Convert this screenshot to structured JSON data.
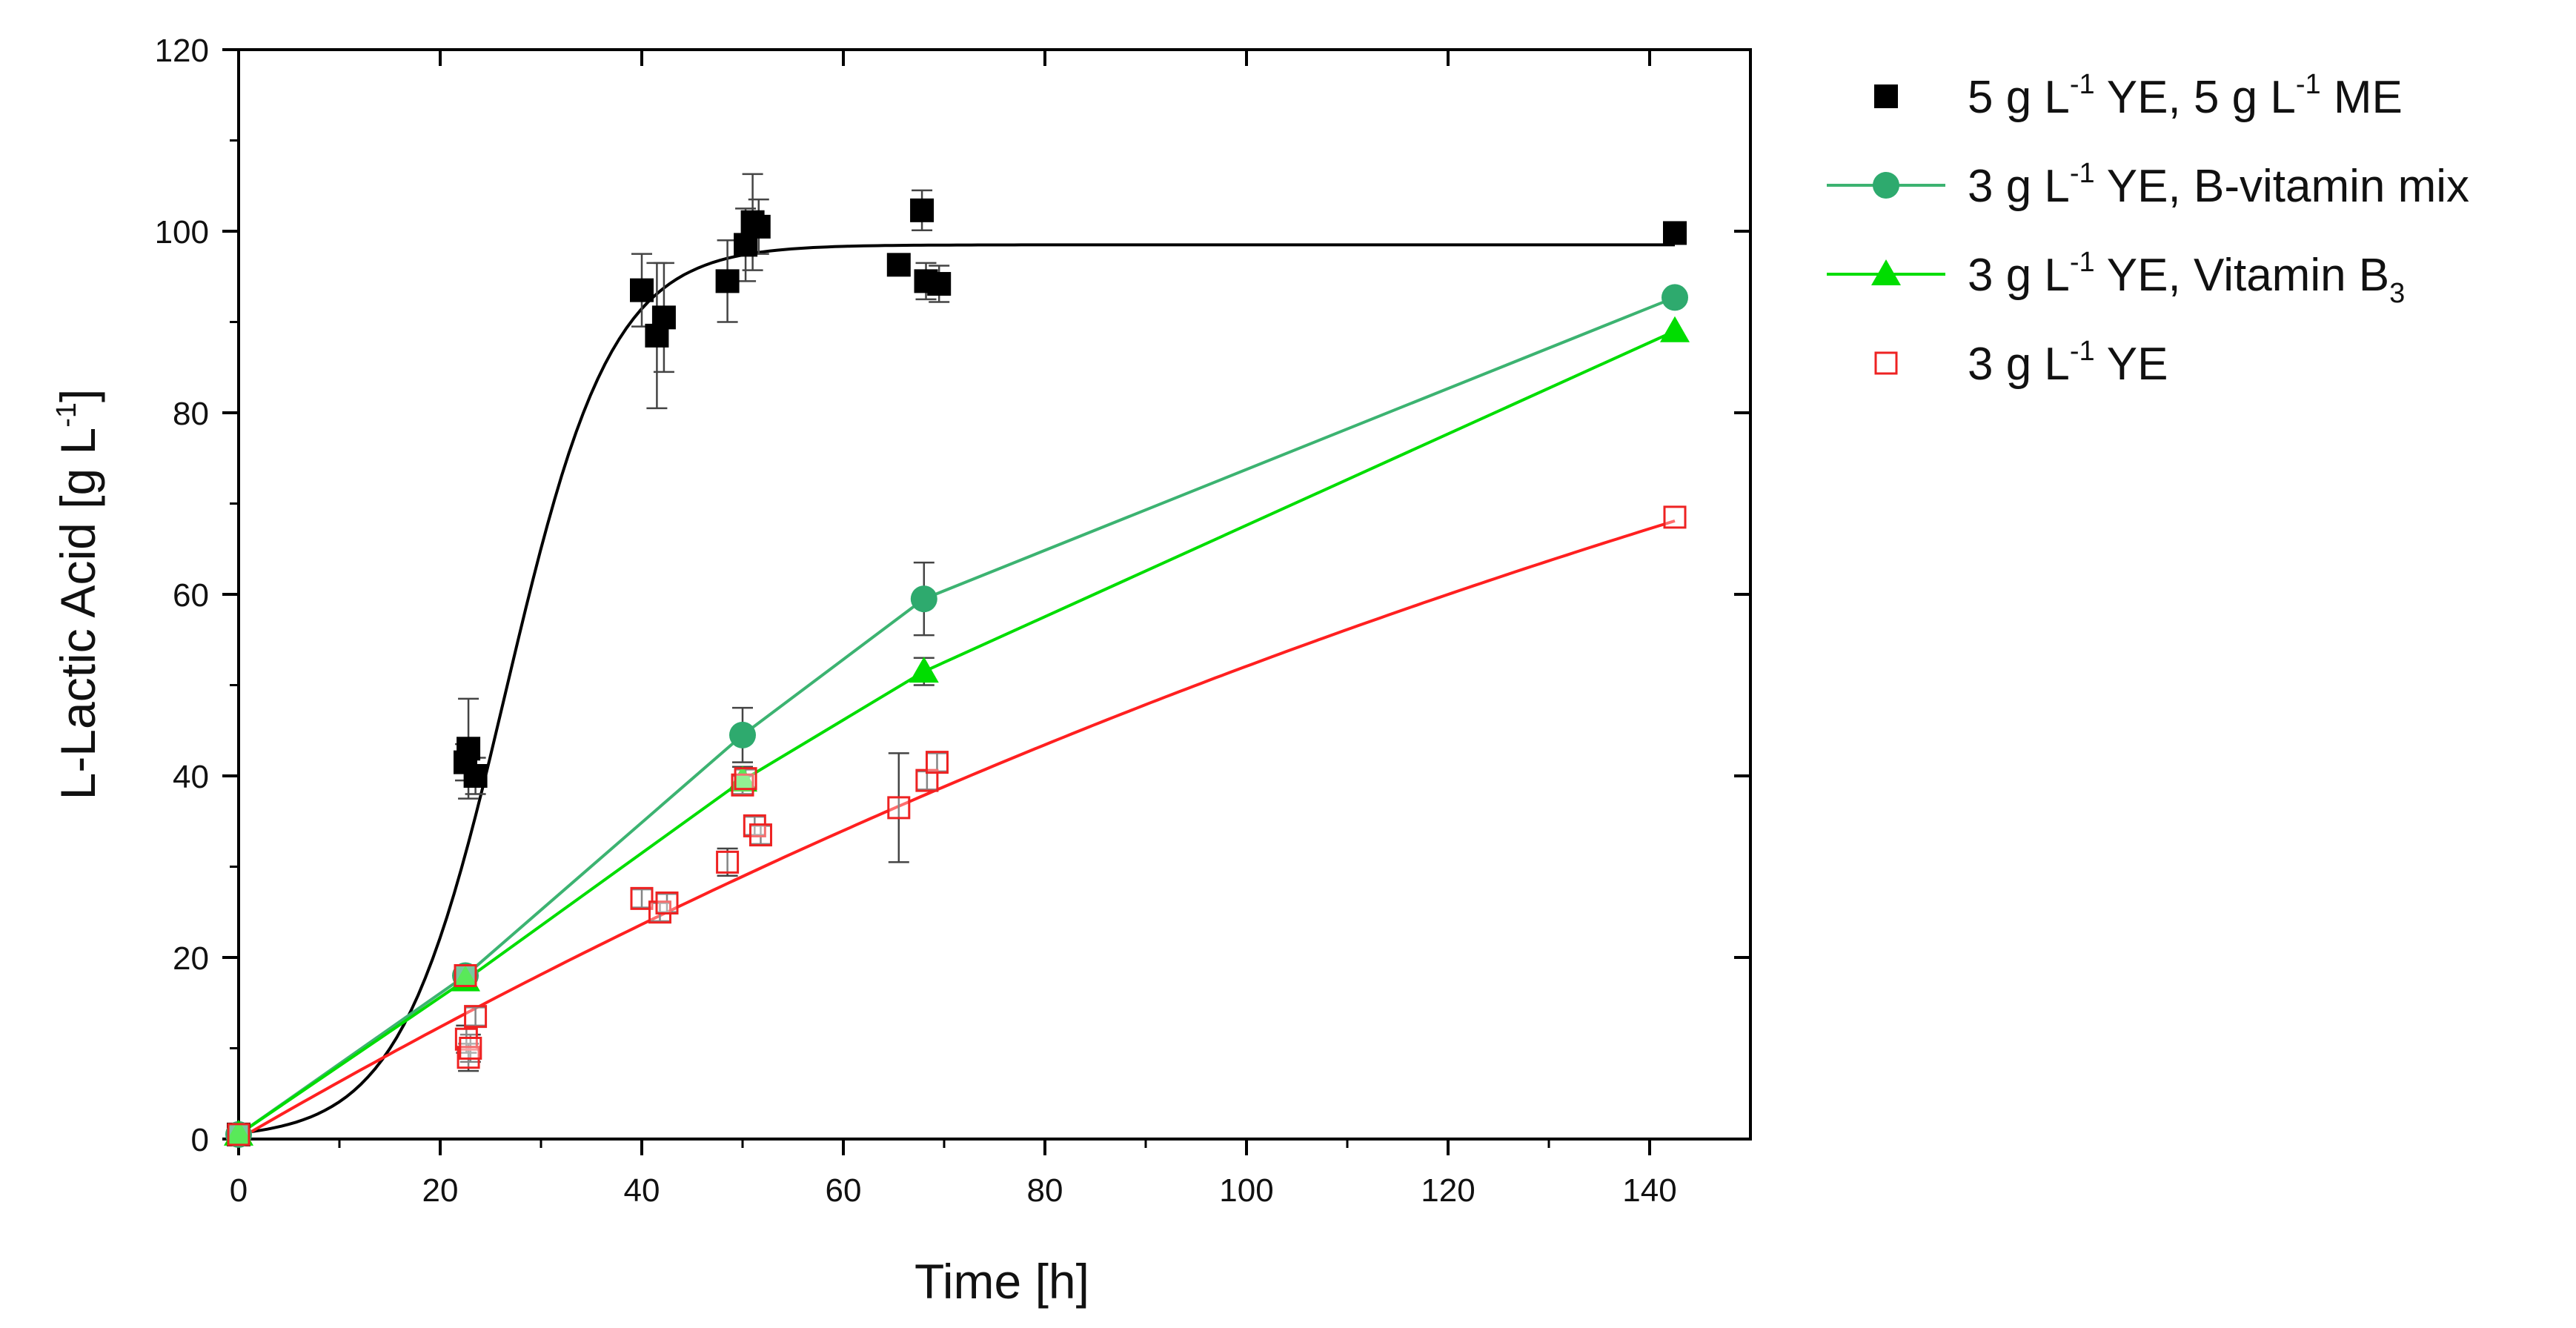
{
  "chart_data": {
    "type": "scatter",
    "title": "",
    "xlabel": "Time   [h]",
    "ylabel": {
      "main": "L-Lactic Acid   [g L",
      "sup": "-1",
      "end": "]"
    },
    "xlim": [
      0,
      150
    ],
    "ylim": [
      0,
      120
    ],
    "xticks": [
      0,
      20,
      40,
      60,
      80,
      100,
      120,
      140
    ],
    "yticks": [
      0,
      20,
      40,
      60,
      80,
      100,
      120
    ],
    "grid": false,
    "legend_position": "outside-right",
    "series": [
      {
        "id": "s1",
        "name": "5 g L-1 YE, 5 g L-1 ME",
        "legend_parts": [
          {
            "t": "5 g L",
            "sup": false
          },
          {
            "t": "-1",
            "sup": true
          },
          {
            "t": " YE, 5 g L",
            "sup": false
          },
          {
            "t": "-1",
            "sup": true
          },
          {
            "t": " ME",
            "sup": false
          }
        ],
        "marker": "square-filled",
        "color": "#000000",
        "legend_line": false,
        "points": [
          {
            "x": 0,
            "y": 0.5,
            "err": 0.5
          },
          {
            "x": 22.5,
            "y": 41.5,
            "err": 2
          },
          {
            "x": 22.8,
            "y": 43,
            "err": 5.5
          },
          {
            "x": 23.5,
            "y": 40,
            "err": 2
          },
          {
            "x": 40,
            "y": 93.5,
            "err": 4
          },
          {
            "x": 41.5,
            "y": 88.5,
            "err": 8
          },
          {
            "x": 42.2,
            "y": 90.5,
            "err": 6
          },
          {
            "x": 48.5,
            "y": 94.5,
            "err": 4.5
          },
          {
            "x": 50.3,
            "y": 98.5,
            "err": 4
          },
          {
            "x": 51,
            "y": 101,
            "err": 5.3
          },
          {
            "x": 51.6,
            "y": 100.5,
            "err": 3
          },
          {
            "x": 65.5,
            "y": 96.3,
            "err": 1
          },
          {
            "x": 67.8,
            "y": 102.3,
            "err": 2.2
          },
          {
            "x": 68.2,
            "y": 94.5,
            "err": 2
          },
          {
            "x": 69.5,
            "y": 94.2,
            "err": 2
          }
        ],
        "extra_points": [
          {
            "x": 142.5,
            "y": 99.8,
            "err": 0
          }
        ],
        "fit_curve": {
          "model": "sigmoid",
          "params": {
            "A": 98.5,
            "x0": 26.5,
            "k": 0.19
          },
          "x_from": 0,
          "x_to": 142.5
        },
        "line_color": "#000000"
      },
      {
        "id": "s2",
        "name": "3 g L-1 YE, B-vitamin mix",
        "legend_parts": [
          {
            "t": "3 g L",
            "sup": false
          },
          {
            "t": "-1",
            "sup": true
          },
          {
            "t": " YE, B-vitamin mix",
            "sup": false
          }
        ],
        "marker": "circle-filled",
        "color": "#2eaa6e",
        "legend_line": true,
        "points": [
          {
            "x": 0,
            "y": 0.5,
            "err": 0
          },
          {
            "x": 22.5,
            "y": 18,
            "err": 1
          },
          {
            "x": 50,
            "y": 44.5,
            "err": 3
          },
          {
            "x": 68,
            "y": 59.5,
            "err": 4
          },
          {
            "x": 142.5,
            "y": 92.7,
            "err": 0
          }
        ],
        "connect": true,
        "line_color": "#3cb371"
      },
      {
        "id": "s3",
        "name": "3 g L-1 YE, Vitamin B3",
        "legend_parts": [
          {
            "t": "3 g L",
            "sup": false
          },
          {
            "t": "-1",
            "sup": true
          },
          {
            "t": " YE, Vitamin B",
            "sup": false
          },
          {
            "t": "3",
            "sub": true
          }
        ],
        "marker": "triangle-filled",
        "color": "#00dd00",
        "legend_line": true,
        "points": [
          {
            "x": 0,
            "y": 0.5,
            "err": 0
          },
          {
            "x": 22.5,
            "y": 17.5,
            "err": 1
          },
          {
            "x": 50,
            "y": 39.5,
            "err": 1.5
          },
          {
            "x": 68,
            "y": 51.5,
            "err": 1.5
          },
          {
            "x": 142.5,
            "y": 89,
            "err": 0
          }
        ],
        "connect": true,
        "line_color": "#00dd00"
      },
      {
        "id": "s4",
        "name": "3 g L-1 YE",
        "legend_parts": [
          {
            "t": "3 g L",
            "sup": false
          },
          {
            "t": "-1",
            "sup": true
          },
          {
            "t": " YE",
            "sup": false
          }
        ],
        "marker": "square-open",
        "color": "#ee2222",
        "legend_line": false,
        "points": [
          {
            "x": 0,
            "y": 0.5,
            "err": 0.5
          },
          {
            "x": 22.5,
            "y": 18,
            "err": 0.8
          },
          {
            "x": 22.6,
            "y": 11,
            "err": 1.5
          },
          {
            "x": 22.8,
            "y": 9,
            "err": 1.5
          },
          {
            "x": 23,
            "y": 10,
            "err": 1.5
          },
          {
            "x": 23.5,
            "y": 13.5,
            "err": 1
          },
          {
            "x": 40,
            "y": 26.5,
            "err": 1
          },
          {
            "x": 41.8,
            "y": 25,
            "err": 1
          },
          {
            "x": 42.5,
            "y": 26,
            "err": 1
          },
          {
            "x": 48.5,
            "y": 30.5,
            "err": 1.5
          },
          {
            "x": 50,
            "y": 39,
            "err": 1
          },
          {
            "x": 50.3,
            "y": 39.7,
            "err": 1
          },
          {
            "x": 51.2,
            "y": 34.5,
            "err": 1
          },
          {
            "x": 51.8,
            "y": 33.5,
            "err": 1
          },
          {
            "x": 65.5,
            "y": 36.5,
            "err": 6
          },
          {
            "x": 68.3,
            "y": 39.5,
            "err": 1
          },
          {
            "x": 69.3,
            "y": 41.5,
            "err": 1
          },
          {
            "x": 142.5,
            "y": 68.5,
            "err": 0
          }
        ],
        "fit_curve": {
          "model": "saturation",
          "params": {
            "A": 145,
            "k": 0.00445
          },
          "x_from": 0,
          "x_to": 142.5
        },
        "line_color": "#ff2020"
      }
    ]
  }
}
